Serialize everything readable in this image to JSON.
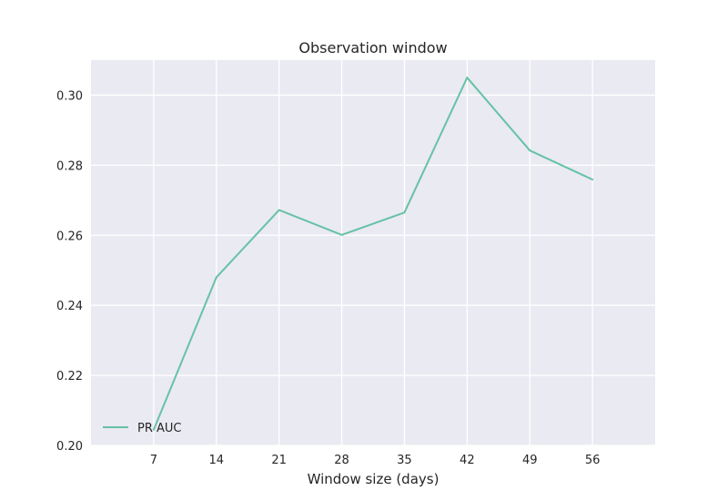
{
  "chart_data": {
    "type": "line",
    "title": "Observation window",
    "xlabel": "Window size (days)",
    "ylabel": "",
    "x": [
      7,
      14,
      21,
      28,
      35,
      42,
      49,
      56
    ],
    "x_ticks": [
      "7",
      "14",
      "21",
      "28",
      "35",
      "42",
      "49",
      "56"
    ],
    "xlim": [
      0,
      63
    ],
    "ylim": [
      0.2,
      0.31
    ],
    "y_ticks": [
      "0.20",
      "0.22",
      "0.24",
      "0.26",
      "0.28",
      "0.30"
    ],
    "series": [
      {
        "name": "PR AUC",
        "color": "#66c2a5",
        "values": [
          0.2045,
          0.248,
          0.2672,
          0.2601,
          0.2665,
          0.305,
          0.2842,
          0.2759
        ]
      }
    ],
    "grid": true,
    "background": "#eaeaf2",
    "legend": "lower-left"
  }
}
